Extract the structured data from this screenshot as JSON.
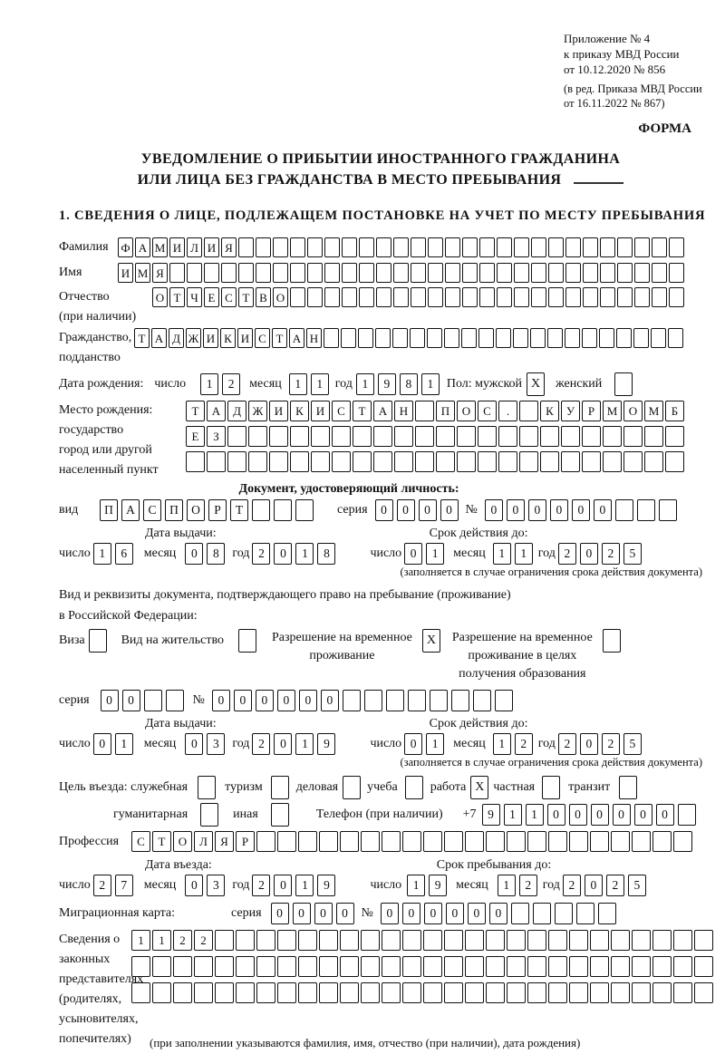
{
  "colors": {
    "ink": "#111111",
    "paper": "#ffffff"
  },
  "header": {
    "ref_lines": [
      "Приложение № 4",
      "к приказу МВД России",
      "от 10.12.2020 № 856"
    ],
    "ref_amendment": [
      "(в ред. Приказа МВД России",
      "от 16.11.2022 № 867)"
    ],
    "form_label": "ФОРМА",
    "title1": "УВЕДОМЛЕНИЕ О ПРИБЫТИИ ИНОСТРАННОГО ГРАЖДАНИНА",
    "title2": "ИЛИ ЛИЦА БЕЗ ГРАЖДАНСТВА В МЕСТО ПРЕБЫВАНИЯ",
    "section1": "1. СВЕДЕНИЯ О ЛИЦЕ, ПОДЛЕЖАЩЕМ ПОСТАНОВКЕ НА УЧЕТ ПО МЕСТУ ПРЕБЫВАНИЯ"
  },
  "labels": {
    "surname": "Фамилия",
    "name": "Имя",
    "patronymic": "Отчество",
    "patronymic_note": "(при наличии)",
    "citizenship1": "Гражданство,",
    "citizenship2": "подданство",
    "birth_date": "Дата рождения:",
    "day": "число",
    "month": "месяц",
    "year": "год",
    "gender_male": "Пол: мужской",
    "gender_female": "женский",
    "birthplace1": "Место рождения:",
    "birthplace2": "государство",
    "birthplace3": "город или другой",
    "birthplace4": "населенный пункт",
    "id_doc_header": "Документ, удостоверяющий личность:",
    "doc_type": "вид",
    "series": "серия",
    "number": "№",
    "issue_date": "Дата выдачи:",
    "valid_until": "Срок действия до:",
    "restriction_note": "(заполняется в случае ограничения срока действия документа)",
    "res_doc_line1": "Вид и реквизиты документа, подтверждающего право на пребывание (проживание)",
    "res_doc_line2": "в Российской Федерации:",
    "visa": "Виза",
    "residence_permit": "Вид на жительство",
    "temp_permit_l1": "Разрешение на временное",
    "temp_permit_l2": "проживание",
    "edu_permit_l1": "Разрешение на временное",
    "edu_permit_l2": "проживание в целях",
    "edu_permit_l3": "получения образования",
    "purpose": "Цель въезда: служебная",
    "tourism": "туризм",
    "business": "деловая",
    "study": "учеба",
    "work": "работа",
    "private": "частная",
    "transit": "транзит",
    "humanitarian": "гуманитарная",
    "other": "иная",
    "phone": "Телефон (при наличии)",
    "phone_code": "+7",
    "profession": "Профессия",
    "entry_date": "Дата въезда:",
    "stay_until": "Срок пребывания до:",
    "migration_card": "Миграционная карта:",
    "rep1": "Сведения о",
    "rep2": "законных",
    "rep3": "представителях",
    "rep4": "(родителях,",
    "rep5": "усыновителях,",
    "rep6": "попечителях)",
    "rep_note": "(при заполнении указываются фамилия, имя, отчество (при наличии), дата рождения)"
  },
  "fields": {
    "surname": {
      "value": "ФАМИЛИЯ",
      "count": 33
    },
    "name": {
      "value": "ИМЯ",
      "count": 33
    },
    "patronymic": {
      "value": "ОТЧЕСТВО",
      "count": 31
    },
    "citizenship": {
      "value": "ТАДЖИКИСТАН",
      "count": 32
    },
    "birth_day": {
      "value": "12",
      "count": 2
    },
    "birth_month": {
      "value": "11",
      "count": 2
    },
    "birth_year": {
      "value": "1981",
      "count": 4
    },
    "gender_male": {
      "value": "X",
      "count": 1
    },
    "gender_female": {
      "value": "",
      "count": 1
    },
    "birthplace_row1": {
      "value": "ТАДЖИКИСТАН ПОС. КУРМОМБ",
      "count": 24
    },
    "birthplace_row2": {
      "value": "ЕЗ",
      "count": 24
    },
    "birthplace_row3": {
      "value": "",
      "count": 24
    },
    "id_doc_type": {
      "value": "ПАСПОРТ",
      "count": 10
    },
    "id_doc_series": {
      "value": "0000",
      "count": 4
    },
    "id_doc_number": {
      "value": "000000",
      "count": 9
    },
    "id_issue_day": {
      "value": "16",
      "count": 2
    },
    "id_issue_month": {
      "value": "08",
      "count": 2
    },
    "id_issue_year": {
      "value": "2018",
      "count": 4
    },
    "id_valid_day": {
      "value": "01",
      "count": 2
    },
    "id_valid_month": {
      "value": "11",
      "count": 2
    },
    "id_valid_year": {
      "value": "2025",
      "count": 4
    },
    "visa_cb": {
      "value": "",
      "count": 1
    },
    "residence_cb": {
      "value": "",
      "count": 1
    },
    "temp_permit_cb": {
      "value": "X",
      "count": 1
    },
    "edu_permit_cb": {
      "value": "",
      "count": 1
    },
    "res_series": {
      "value": "00",
      "count": 4
    },
    "res_number": {
      "value": "000000",
      "count": 14
    },
    "res_issue_day": {
      "value": "01",
      "count": 2
    },
    "res_issue_month": {
      "value": "03",
      "count": 2
    },
    "res_issue_year": {
      "value": "2019",
      "count": 4
    },
    "res_valid_day": {
      "value": "01",
      "count": 2
    },
    "res_valid_month": {
      "value": "12",
      "count": 2
    },
    "res_valid_year": {
      "value": "2025",
      "count": 4
    },
    "purpose_official": {
      "value": "",
      "count": 1
    },
    "purpose_tourism": {
      "value": "",
      "count": 1
    },
    "purpose_business": {
      "value": "",
      "count": 1
    },
    "purpose_study": {
      "value": "",
      "count": 1
    },
    "purpose_work": {
      "value": "X",
      "count": 1
    },
    "purpose_private": {
      "value": "",
      "count": 1
    },
    "purpose_transit": {
      "value": "",
      "count": 1
    },
    "purpose_humanitarian": {
      "value": "",
      "count": 1
    },
    "purpose_other": {
      "value": "",
      "count": 1
    },
    "phone": {
      "value": "911000000",
      "count": 10
    },
    "profession": {
      "value": "СТОЛЯР",
      "count": 27
    },
    "entry_day": {
      "value": "27",
      "count": 2
    },
    "entry_month": {
      "value": "03",
      "count": 2
    },
    "entry_year": {
      "value": "2019",
      "count": 4
    },
    "stay_day": {
      "value": "19",
      "count": 2
    },
    "stay_month": {
      "value": "12",
      "count": 2
    },
    "stay_year": {
      "value": "2025",
      "count": 4
    },
    "mig_series": {
      "value": "0000",
      "count": 4
    },
    "mig_number": {
      "value": "000000",
      "count": 11
    },
    "rep_row1": {
      "value": "1122",
      "count": 28
    },
    "rep_row2": {
      "value": "",
      "count": 28
    },
    "rep_row3": {
      "value": "",
      "count": 28
    }
  }
}
